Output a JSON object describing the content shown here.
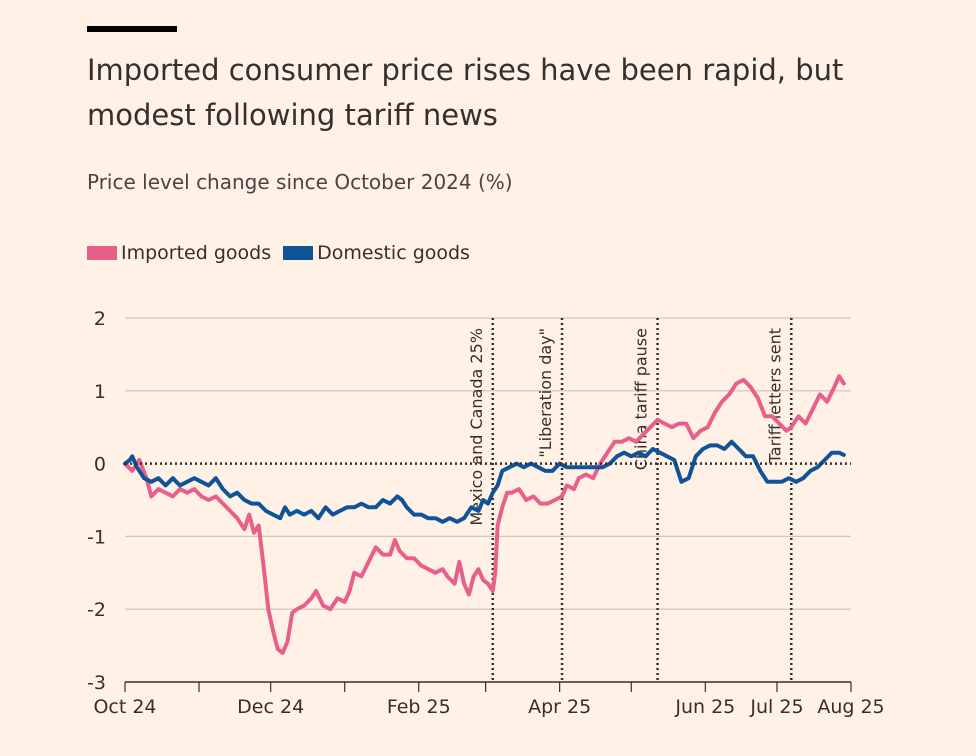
{
  "title": "Imported consumer price rises have been rapid, but modest following tariff news",
  "subtitle": "Price level change since October 2024 (%)",
  "colors": {
    "imported": "#E8608A",
    "domestic": "#0F5499",
    "background": "#FFF1E5",
    "grid": "#CEC6BE"
  },
  "chart_data": {
    "type": "line",
    "title": "Imported consumer price rises have been rapid, but modest following tariff news",
    "ylabel": "Price level change since October 2024 (%)",
    "ylim": [
      -3,
      2
    ],
    "y_ticks": [
      "2",
      "1",
      "0",
      "-1",
      "-2",
      "-3"
    ],
    "y_tick_values": [
      2,
      1,
      0,
      -1,
      -2,
      -3
    ],
    "x_range": [
      "2024-10-01",
      "2025-08-01"
    ],
    "x_ticks": [
      {
        "label": "Oct 24",
        "date": "2024-10-01"
      },
      {
        "label": "Dec 24",
        "date": "2024-12-01"
      },
      {
        "label": "Feb 25",
        "date": "2025-02-01"
      },
      {
        "label": "Apr 25",
        "date": "2025-04-01"
      },
      {
        "label": "Jun 25",
        "date": "2025-06-01"
      },
      {
        "label": "Jul 25",
        "date": "2025-07-01"
      },
      {
        "label": "Aug 25",
        "date": "2025-08-01"
      }
    ],
    "x_minor_ticks": [
      "2024-11-01",
      "2025-01-01",
      "2025-03-01",
      "2025-05-01"
    ],
    "grid": true,
    "legend": "top-left",
    "annotations": [
      {
        "label": "Mexico and Canada 25%",
        "date": "2025-03-04"
      },
      {
        "label": "\"Liberation day\"",
        "date": "2025-04-02"
      },
      {
        "label": "China tariff pause",
        "date": "2025-05-12"
      },
      {
        "label": "Tariff letters sent",
        "date": "2025-07-07"
      }
    ],
    "series": [
      {
        "name": "Imported goods",
        "color": "#E8608A",
        "points": [
          [
            "2024-10-01",
            0.0
          ],
          [
            "2024-10-04",
            -0.1
          ],
          [
            "2024-10-07",
            0.05
          ],
          [
            "2024-10-10",
            -0.2
          ],
          [
            "2024-10-12",
            -0.45
          ],
          [
            "2024-10-15",
            -0.35
          ],
          [
            "2024-10-18",
            -0.4
          ],
          [
            "2024-10-21",
            -0.45
          ],
          [
            "2024-10-24",
            -0.35
          ],
          [
            "2024-10-27",
            -0.4
          ],
          [
            "2024-10-30",
            -0.35
          ],
          [
            "2024-11-02",
            -0.45
          ],
          [
            "2024-11-05",
            -0.5
          ],
          [
            "2024-11-08",
            -0.45
          ],
          [
            "2024-11-11",
            -0.55
          ],
          [
            "2024-11-14",
            -0.65
          ],
          [
            "2024-11-17",
            -0.75
          ],
          [
            "2024-11-20",
            -0.9
          ],
          [
            "2024-11-22",
            -0.7
          ],
          [
            "2024-11-24",
            -0.95
          ],
          [
            "2024-11-26",
            -0.85
          ],
          [
            "2024-11-28",
            -1.4
          ],
          [
            "2024-11-30",
            -2.0
          ],
          [
            "2024-12-02",
            -2.3
          ],
          [
            "2024-12-04",
            -2.55
          ],
          [
            "2024-12-06",
            -2.6
          ],
          [
            "2024-12-08",
            -2.45
          ],
          [
            "2024-12-10",
            -2.05
          ],
          [
            "2024-12-12",
            -2.0
          ],
          [
            "2024-12-15",
            -1.95
          ],
          [
            "2024-12-18",
            -1.85
          ],
          [
            "2024-12-20",
            -1.75
          ],
          [
            "2024-12-23",
            -1.95
          ],
          [
            "2024-12-26",
            -2.0
          ],
          [
            "2024-12-29",
            -1.85
          ],
          [
            "2025-01-01",
            -1.9
          ],
          [
            "2025-01-03",
            -1.75
          ],
          [
            "2025-01-05",
            -1.5
          ],
          [
            "2025-01-08",
            -1.55
          ],
          [
            "2025-01-11",
            -1.35
          ],
          [
            "2025-01-14",
            -1.15
          ],
          [
            "2025-01-17",
            -1.25
          ],
          [
            "2025-01-20",
            -1.25
          ],
          [
            "2025-01-22",
            -1.05
          ],
          [
            "2025-01-24",
            -1.2
          ],
          [
            "2025-01-27",
            -1.3
          ],
          [
            "2025-01-30",
            -1.3
          ],
          [
            "2025-02-02",
            -1.4
          ],
          [
            "2025-02-05",
            -1.45
          ],
          [
            "2025-02-08",
            -1.5
          ],
          [
            "2025-02-11",
            -1.45
          ],
          [
            "2025-02-13",
            -1.55
          ],
          [
            "2025-02-16",
            -1.65
          ],
          [
            "2025-02-18",
            -1.35
          ],
          [
            "2025-02-20",
            -1.65
          ],
          [
            "2025-02-22",
            -1.8
          ],
          [
            "2025-02-24",
            -1.55
          ],
          [
            "2025-02-26",
            -1.45
          ],
          [
            "2025-02-28",
            -1.6
          ],
          [
            "2025-03-02",
            -1.65
          ],
          [
            "2025-03-04",
            -1.75
          ],
          [
            "2025-03-05",
            -1.5
          ],
          [
            "2025-03-06",
            -0.85
          ],
          [
            "2025-03-08",
            -0.6
          ],
          [
            "2025-03-10",
            -0.4
          ],
          [
            "2025-03-12",
            -0.4
          ],
          [
            "2025-03-15",
            -0.35
          ],
          [
            "2025-03-18",
            -0.5
          ],
          [
            "2025-03-21",
            -0.45
          ],
          [
            "2025-03-24",
            -0.55
          ],
          [
            "2025-03-27",
            -0.55
          ],
          [
            "2025-03-30",
            -0.5
          ],
          [
            "2025-04-02",
            -0.45
          ],
          [
            "2025-04-04",
            -0.3
          ],
          [
            "2025-04-07",
            -0.35
          ],
          [
            "2025-04-09",
            -0.2
          ],
          [
            "2025-04-12",
            -0.15
          ],
          [
            "2025-04-15",
            -0.2
          ],
          [
            "2025-04-18",
            0.0
          ],
          [
            "2025-04-21",
            0.15
          ],
          [
            "2025-04-24",
            0.3
          ],
          [
            "2025-04-27",
            0.3
          ],
          [
            "2025-04-30",
            0.35
          ],
          [
            "2025-05-03",
            0.3
          ],
          [
            "2025-05-06",
            0.4
          ],
          [
            "2025-05-09",
            0.5
          ],
          [
            "2025-05-12",
            0.6
          ],
          [
            "2025-05-15",
            0.55
          ],
          [
            "2025-05-18",
            0.5
          ],
          [
            "2025-05-21",
            0.55
          ],
          [
            "2025-05-24",
            0.55
          ],
          [
            "2025-05-27",
            0.35
          ],
          [
            "2025-05-30",
            0.45
          ],
          [
            "2025-06-02",
            0.5
          ],
          [
            "2025-06-05",
            0.7
          ],
          [
            "2025-06-08",
            0.85
          ],
          [
            "2025-06-11",
            0.95
          ],
          [
            "2025-06-14",
            1.1
          ],
          [
            "2025-06-17",
            1.15
          ],
          [
            "2025-06-20",
            1.05
          ],
          [
            "2025-06-23",
            0.9
          ],
          [
            "2025-06-26",
            0.65
          ],
          [
            "2025-06-29",
            0.65
          ],
          [
            "2025-07-02",
            0.55
          ],
          [
            "2025-07-05",
            0.45
          ],
          [
            "2025-07-07",
            0.5
          ],
          [
            "2025-07-10",
            0.65
          ],
          [
            "2025-07-13",
            0.55
          ],
          [
            "2025-07-16",
            0.75
          ],
          [
            "2025-07-19",
            0.95
          ],
          [
            "2025-07-22",
            0.85
          ],
          [
            "2025-07-25",
            1.05
          ],
          [
            "2025-07-27",
            1.2
          ],
          [
            "2025-07-29",
            1.1
          ]
        ]
      },
      {
        "name": "Domestic goods",
        "color": "#0F5499",
        "points": [
          [
            "2024-10-01",
            0.0
          ],
          [
            "2024-10-03",
            0.05
          ],
          [
            "2024-10-04",
            0.1
          ],
          [
            "2024-10-06",
            -0.05
          ],
          [
            "2024-10-09",
            -0.2
          ],
          [
            "2024-10-12",
            -0.25
          ],
          [
            "2024-10-15",
            -0.2
          ],
          [
            "2024-10-18",
            -0.3
          ],
          [
            "2024-10-21",
            -0.2
          ],
          [
            "2024-10-24",
            -0.3
          ],
          [
            "2024-10-27",
            -0.25
          ],
          [
            "2024-10-30",
            -0.2
          ],
          [
            "2024-11-02",
            -0.25
          ],
          [
            "2024-11-05",
            -0.3
          ],
          [
            "2024-11-08",
            -0.2
          ],
          [
            "2024-11-11",
            -0.35
          ],
          [
            "2024-11-14",
            -0.45
          ],
          [
            "2024-11-17",
            -0.4
          ],
          [
            "2024-11-20",
            -0.5
          ],
          [
            "2024-11-23",
            -0.55
          ],
          [
            "2024-11-26",
            -0.55
          ],
          [
            "2024-11-29",
            -0.65
          ],
          [
            "2024-12-02",
            -0.7
          ],
          [
            "2024-12-05",
            -0.75
          ],
          [
            "2024-12-07",
            -0.6
          ],
          [
            "2024-12-09",
            -0.7
          ],
          [
            "2024-12-12",
            -0.65
          ],
          [
            "2024-12-15",
            -0.7
          ],
          [
            "2024-12-18",
            -0.65
          ],
          [
            "2024-12-21",
            -0.75
          ],
          [
            "2024-12-24",
            -0.6
          ],
          [
            "2024-12-27",
            -0.7
          ],
          [
            "2024-12-30",
            -0.65
          ],
          [
            "2025-01-02",
            -0.6
          ],
          [
            "2025-01-05",
            -0.6
          ],
          [
            "2025-01-08",
            -0.55
          ],
          [
            "2025-01-11",
            -0.6
          ],
          [
            "2025-01-14",
            -0.6
          ],
          [
            "2025-01-17",
            -0.5
          ],
          [
            "2025-01-20",
            -0.55
          ],
          [
            "2025-01-23",
            -0.45
          ],
          [
            "2025-01-25",
            -0.5
          ],
          [
            "2025-01-27",
            -0.6
          ],
          [
            "2025-01-30",
            -0.7
          ],
          [
            "2025-02-02",
            -0.7
          ],
          [
            "2025-02-05",
            -0.75
          ],
          [
            "2025-02-08",
            -0.75
          ],
          [
            "2025-02-11",
            -0.8
          ],
          [
            "2025-02-14",
            -0.75
          ],
          [
            "2025-02-17",
            -0.8
          ],
          [
            "2025-02-20",
            -0.75
          ],
          [
            "2025-02-23",
            -0.6
          ],
          [
            "2025-02-26",
            -0.65
          ],
          [
            "2025-02-28",
            -0.5
          ],
          [
            "2025-03-02",
            -0.55
          ],
          [
            "2025-03-04",
            -0.4
          ],
          [
            "2025-03-06",
            -0.3
          ],
          [
            "2025-03-08",
            -0.1
          ],
          [
            "2025-03-11",
            -0.05
          ],
          [
            "2025-03-14",
            0.0
          ],
          [
            "2025-03-17",
            -0.05
          ],
          [
            "2025-03-20",
            0.0
          ],
          [
            "2025-03-23",
            -0.05
          ],
          [
            "2025-03-26",
            -0.1
          ],
          [
            "2025-03-29",
            -0.1
          ],
          [
            "2025-04-01",
            0.0
          ],
          [
            "2025-04-04",
            -0.05
          ],
          [
            "2025-04-07",
            -0.05
          ],
          [
            "2025-04-10",
            -0.05
          ],
          [
            "2025-04-13",
            -0.05
          ],
          [
            "2025-04-16",
            -0.05
          ],
          [
            "2025-04-19",
            -0.05
          ],
          [
            "2025-04-22",
            0.0
          ],
          [
            "2025-04-25",
            0.1
          ],
          [
            "2025-04-28",
            0.15
          ],
          [
            "2025-05-01",
            0.1
          ],
          [
            "2025-05-04",
            0.15
          ],
          [
            "2025-05-07",
            0.1
          ],
          [
            "2025-05-10",
            0.2
          ],
          [
            "2025-05-13",
            0.15
          ],
          [
            "2025-05-16",
            0.1
          ],
          [
            "2025-05-19",
            0.05
          ],
          [
            "2025-05-22",
            -0.25
          ],
          [
            "2025-05-25",
            -0.2
          ],
          [
            "2025-05-28",
            0.1
          ],
          [
            "2025-05-31",
            0.2
          ],
          [
            "2025-06-03",
            0.25
          ],
          [
            "2025-06-06",
            0.25
          ],
          [
            "2025-06-09",
            0.2
          ],
          [
            "2025-06-12",
            0.3
          ],
          [
            "2025-06-15",
            0.2
          ],
          [
            "2025-06-18",
            0.1
          ],
          [
            "2025-06-21",
            0.1
          ],
          [
            "2025-06-24",
            -0.1
          ],
          [
            "2025-06-27",
            -0.25
          ],
          [
            "2025-06-30",
            -0.25
          ],
          [
            "2025-07-03",
            -0.25
          ],
          [
            "2025-07-06",
            -0.2
          ],
          [
            "2025-07-09",
            -0.25
          ],
          [
            "2025-07-12",
            -0.2
          ],
          [
            "2025-07-15",
            -0.1
          ],
          [
            "2025-07-18",
            -0.05
          ],
          [
            "2025-07-21",
            0.05
          ],
          [
            "2025-07-24",
            0.15
          ],
          [
            "2025-07-27",
            0.15
          ],
          [
            "2025-07-29",
            0.12
          ]
        ]
      }
    ]
  }
}
